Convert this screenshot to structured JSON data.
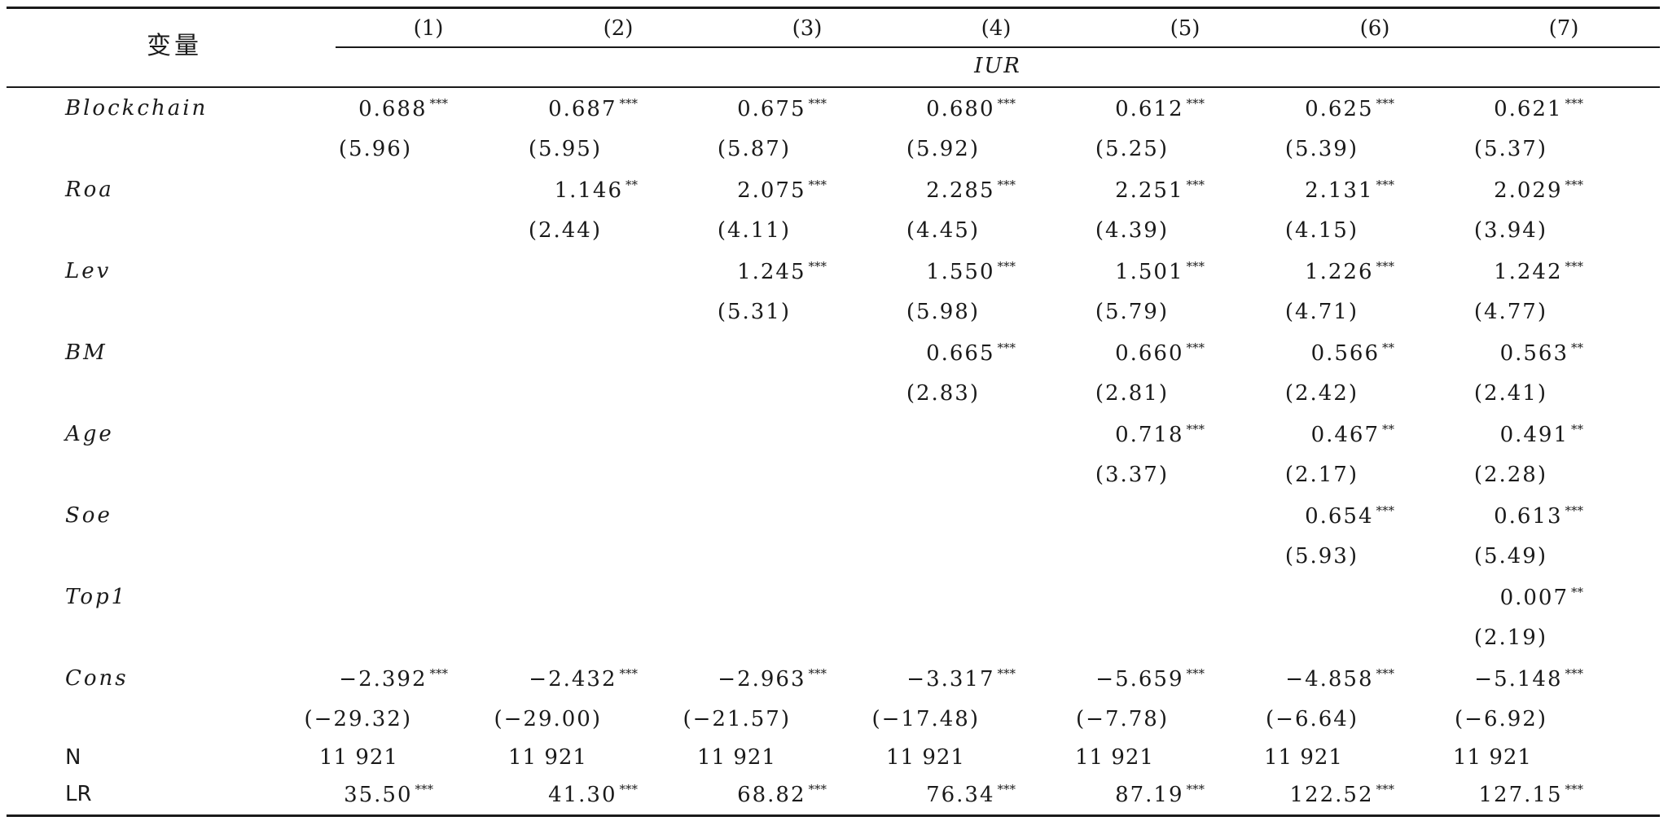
{
  "header": {
    "variable_label": "变量",
    "columns": [
      "(1)",
      "(2)",
      "(3)",
      "(4)",
      "(5)",
      "(6)",
      "(7)"
    ],
    "dependent_var": "IUR"
  },
  "rows": [
    {
      "label": "Blockchain",
      "coef": [
        "0.688",
        "0.687",
        "0.675",
        "0.680",
        "0.612",
        "0.625",
        "0.621"
      ],
      "stars": [
        "***",
        "***",
        "***",
        "***",
        "***",
        "***",
        "***"
      ],
      "t": [
        "(5.96)",
        "(5.95)",
        "(5.87)",
        "(5.92)",
        "(5.25)",
        "(5.39)",
        "(5.37)"
      ]
    },
    {
      "label": "Roa",
      "coef": [
        "",
        "1.146",
        "2.075",
        "2.285",
        "2.251",
        "2.131",
        "2.029"
      ],
      "stars": [
        "",
        "**",
        "***",
        "***",
        "***",
        "***",
        "***"
      ],
      "t": [
        "",
        "(2.44)",
        "(4.11)",
        "(4.45)",
        "(4.39)",
        "(4.15)",
        "(3.94)"
      ]
    },
    {
      "label": "Lev",
      "coef": [
        "",
        "",
        "1.245",
        "1.550",
        "1.501",
        "1.226",
        "1.242"
      ],
      "stars": [
        "",
        "",
        "***",
        "***",
        "***",
        "***",
        "***"
      ],
      "t": [
        "",
        "",
        "(5.31)",
        "(5.98)",
        "(5.79)",
        "(4.71)",
        "(4.77)"
      ]
    },
    {
      "label": "BM",
      "coef": [
        "",
        "",
        "",
        "0.665",
        "0.660",
        "0.566",
        "0.563"
      ],
      "stars": [
        "",
        "",
        "",
        "***",
        "***",
        "**",
        "**"
      ],
      "t": [
        "",
        "",
        "",
        "(2.83)",
        "(2.81)",
        "(2.42)",
        "(2.41)"
      ]
    },
    {
      "label": "Age",
      "coef": [
        "",
        "",
        "",
        "",
        "0.718",
        "0.467",
        "0.491"
      ],
      "stars": [
        "",
        "",
        "",
        "",
        "***",
        "**",
        "**"
      ],
      "t": [
        "",
        "",
        "",
        "",
        "(3.37)",
        "(2.17)",
        "(2.28)"
      ]
    },
    {
      "label": "Soe",
      "coef": [
        "",
        "",
        "",
        "",
        "",
        "0.654",
        "0.613"
      ],
      "stars": [
        "",
        "",
        "",
        "",
        "",
        "***",
        "***"
      ],
      "t": [
        "",
        "",
        "",
        "",
        "",
        "(5.93)",
        "(5.49)"
      ]
    },
    {
      "label": "Top1",
      "coef": [
        "",
        "",
        "",
        "",
        "",
        "",
        "0.007"
      ],
      "stars": [
        "",
        "",
        "",
        "",
        "",
        "",
        "**"
      ],
      "t": [
        "",
        "",
        "",
        "",
        "",
        "",
        "(2.19)"
      ]
    },
    {
      "label": "Cons",
      "coef": [
        "−2.392",
        "−2.432",
        "−2.963",
        "−3.317",
        "−5.659",
        "−4.858",
        "−5.148"
      ],
      "stars": [
        "***",
        "***",
        "***",
        "***",
        "***",
        "***",
        "***"
      ],
      "t": [
        "(−29.32)",
        "(−29.00)",
        "(−21.57)",
        "(−17.48)",
        "(−7.78)",
        "(−6.64)",
        "(−6.92)"
      ]
    }
  ],
  "footer": {
    "n_label": "N",
    "n_values": [
      "11 921",
      "11 921",
      "11 921",
      "11 921",
      "11 921",
      "11 921",
      "11 921"
    ],
    "lr_label": "LR",
    "lr_values": [
      "35.50",
      "41.30",
      "68.82",
      "76.34",
      "87.19",
      "122.52",
      "127.15"
    ],
    "lr_stars": [
      "***",
      "***",
      "***",
      "***",
      "***",
      "***",
      "***"
    ]
  }
}
